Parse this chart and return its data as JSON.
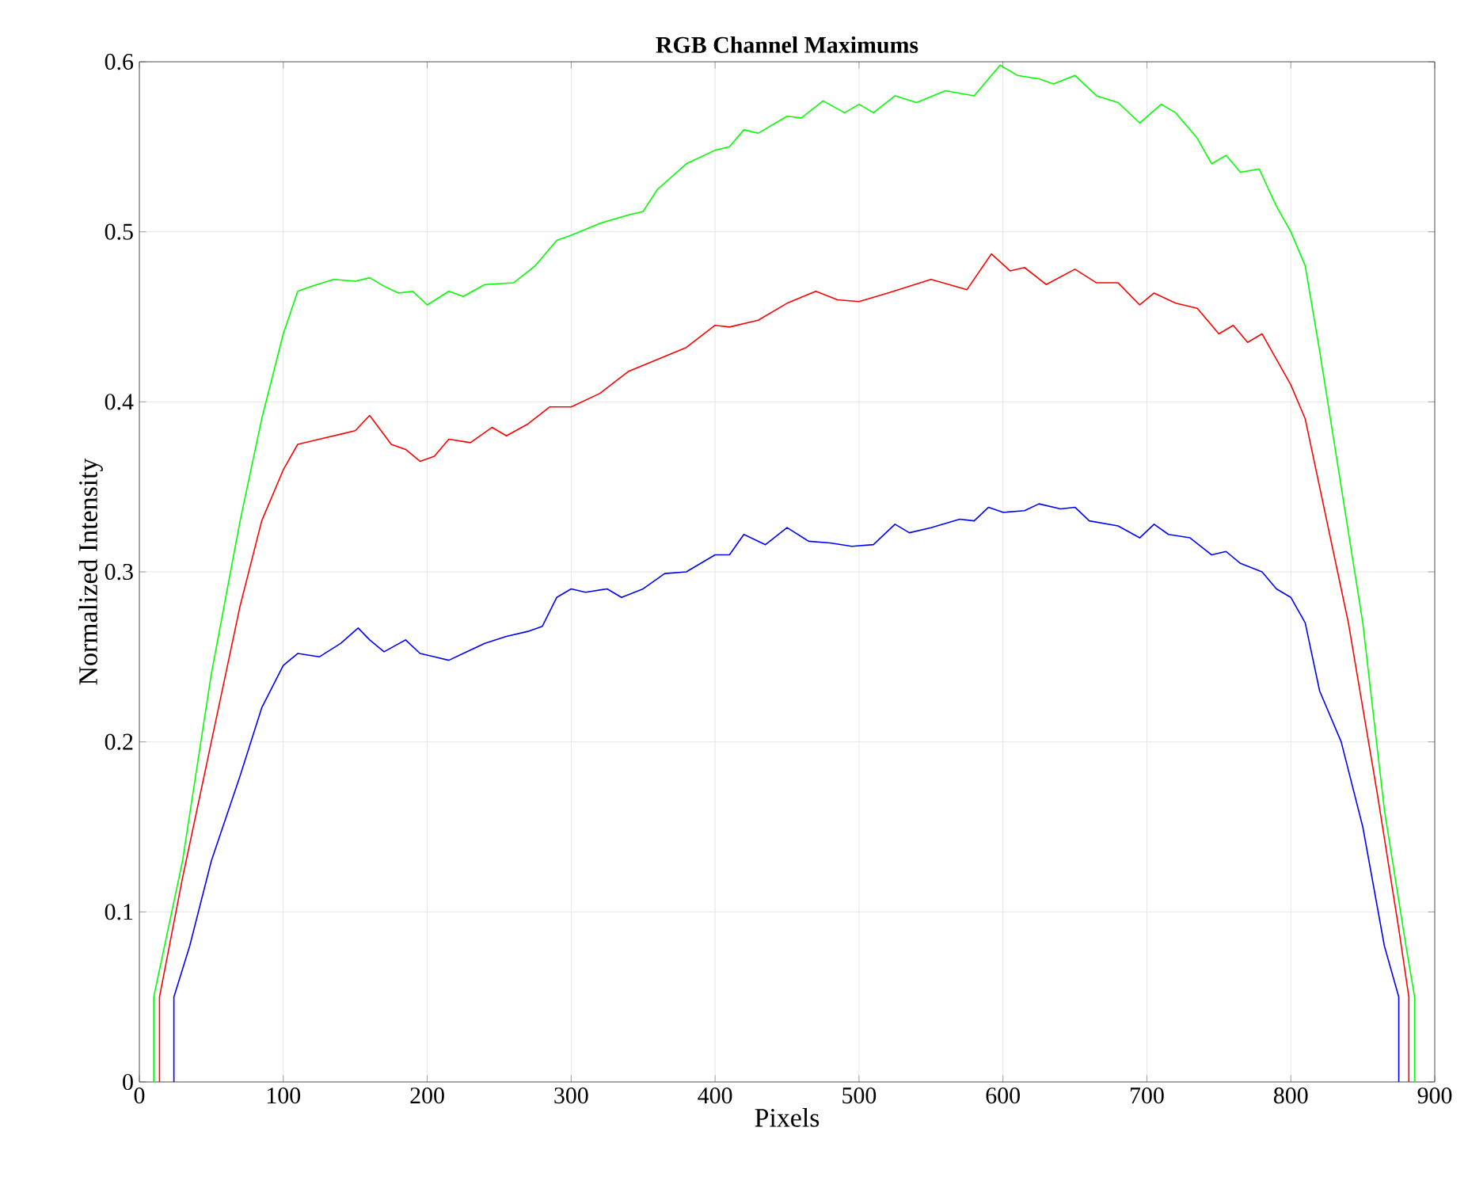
{
  "chart_data": {
    "type": "line",
    "title": "RGB Channel Maximums",
    "xlabel": "Pixels",
    "ylabel": "Normalized Intensity",
    "xlim": [
      0,
      900
    ],
    "ylim": [
      0,
      0.6
    ],
    "xticks": [
      0,
      100,
      200,
      300,
      400,
      500,
      600,
      700,
      800,
      900
    ],
    "yticks": [
      0,
      0.1,
      0.2,
      0.3,
      0.4,
      0.5,
      0.6
    ],
    "grid": true,
    "series": [
      {
        "color": "#00ff00",
        "x": [
          10,
          10,
          30,
          50,
          70,
          85,
          100,
          110,
          120,
          135,
          150,
          160,
          170,
          180,
          190,
          200,
          215,
          225,
          240,
          260,
          275,
          290,
          300,
          320,
          340,
          350,
          360,
          380,
          400,
          410,
          420,
          430,
          450,
          460,
          475,
          490,
          500,
          510,
          525,
          540,
          560,
          580,
          598,
          610,
          625,
          635,
          650,
          665,
          680,
          695,
          710,
          720,
          735,
          745,
          755,
          765,
          778,
          790,
          800,
          810,
          820,
          835,
          850,
          865,
          880,
          886,
          886
        ],
        "values": [
          0,
          0.05,
          0.13,
          0.24,
          0.33,
          0.39,
          0.44,
          0.465,
          0.468,
          0.472,
          0.471,
          0.473,
          0.468,
          0.464,
          0.465,
          0.457,
          0.465,
          0.462,
          0.469,
          0.47,
          0.48,
          0.495,
          0.498,
          0.505,
          0.51,
          0.512,
          0.525,
          0.54,
          0.548,
          0.55,
          0.56,
          0.558,
          0.568,
          0.567,
          0.577,
          0.57,
          0.575,
          0.57,
          0.58,
          0.576,
          0.583,
          0.58,
          0.598,
          0.592,
          0.59,
          0.587,
          0.592,
          0.58,
          0.576,
          0.564,
          0.575,
          0.57,
          0.555,
          0.54,
          0.545,
          0.535,
          0.537,
          0.515,
          0.5,
          0.48,
          0.43,
          0.35,
          0.27,
          0.16,
          0.08,
          0.05,
          0
        ]
      },
      {
        "color": "#ff0000",
        "x": [
          14,
          14,
          30,
          50,
          70,
          85,
          100,
          110,
          125,
          140,
          150,
          160,
          175,
          185,
          195,
          205,
          215,
          230,
          245,
          255,
          270,
          285,
          300,
          320,
          340,
          360,
          380,
          400,
          410,
          430,
          450,
          470,
          485,
          500,
          520,
          550,
          575,
          592,
          605,
          615,
          630,
          650,
          665,
          680,
          695,
          705,
          720,
          735,
          750,
          760,
          770,
          780,
          790,
          800,
          810,
          820,
          840,
          860,
          875,
          882,
          882
        ],
        "values": [
          0,
          0.05,
          0.12,
          0.2,
          0.28,
          0.33,
          0.36,
          0.375,
          0.378,
          0.381,
          0.383,
          0.392,
          0.375,
          0.372,
          0.365,
          0.368,
          0.378,
          0.376,
          0.385,
          0.38,
          0.387,
          0.397,
          0.397,
          0.405,
          0.418,
          0.425,
          0.432,
          0.445,
          0.444,
          0.448,
          0.458,
          0.465,
          0.46,
          0.459,
          0.464,
          0.472,
          0.466,
          0.487,
          0.477,
          0.479,
          0.469,
          0.478,
          0.47,
          0.47,
          0.457,
          0.464,
          0.458,
          0.455,
          0.44,
          0.445,
          0.435,
          0.44,
          0.425,
          0.41,
          0.39,
          0.35,
          0.27,
          0.17,
          0.09,
          0.05,
          0
        ]
      },
      {
        "color": "#0000ff",
        "x": [
          24,
          24,
          35,
          50,
          70,
          85,
          100,
          110,
          125,
          140,
          152,
          160,
          170,
          185,
          195,
          205,
          215,
          225,
          240,
          255,
          270,
          280,
          290,
          300,
          310,
          325,
          335,
          350,
          365,
          380,
          400,
          410,
          420,
          435,
          450,
          465,
          480,
          495,
          510,
          525,
          535,
          550,
          570,
          580,
          590,
          600,
          615,
          625,
          640,
          650,
          660,
          680,
          695,
          705,
          715,
          730,
          745,
          755,
          765,
          780,
          790,
          800,
          810,
          820,
          835,
          850,
          865,
          875,
          875
        ],
        "values": [
          0,
          0.05,
          0.08,
          0.13,
          0.18,
          0.22,
          0.245,
          0.252,
          0.25,
          0.258,
          0.267,
          0.26,
          0.253,
          0.26,
          0.252,
          0.25,
          0.248,
          0.252,
          0.258,
          0.262,
          0.265,
          0.268,
          0.285,
          0.29,
          0.288,
          0.29,
          0.285,
          0.29,
          0.299,
          0.3,
          0.31,
          0.31,
          0.322,
          0.316,
          0.326,
          0.318,
          0.317,
          0.315,
          0.316,
          0.328,
          0.323,
          0.326,
          0.331,
          0.33,
          0.338,
          0.335,
          0.336,
          0.34,
          0.337,
          0.338,
          0.33,
          0.327,
          0.32,
          0.328,
          0.322,
          0.32,
          0.31,
          0.312,
          0.305,
          0.3,
          0.29,
          0.285,
          0.27,
          0.23,
          0.2,
          0.15,
          0.08,
          0.05,
          0
        ]
      }
    ]
  }
}
